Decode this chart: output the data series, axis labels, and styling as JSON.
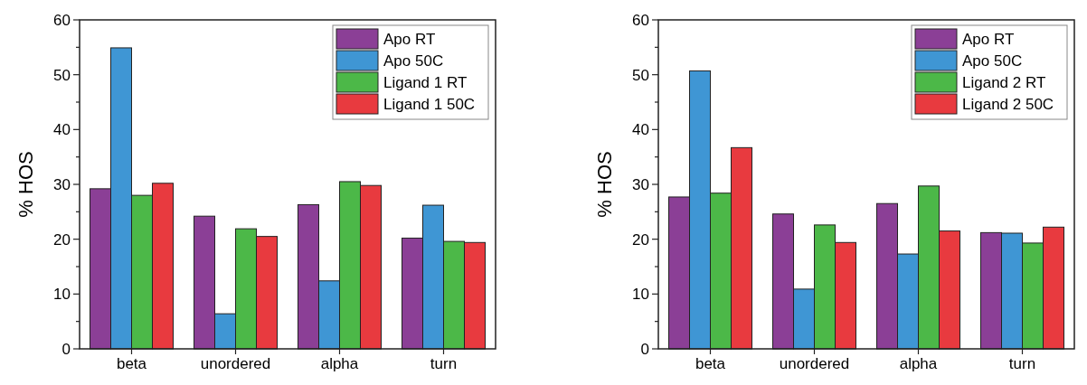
{
  "chart_data": [
    {
      "type": "bar",
      "ylabel": "% HOS",
      "categories": [
        "beta",
        "unordered",
        "alpha",
        "turn"
      ],
      "ylim": [
        0,
        60
      ],
      "yticks": [
        0,
        {
          "value": 5,
          "label": null
        },
        10,
        {
          "value": 15,
          "label": null
        },
        20,
        {
          "value": 25,
          "label": null
        },
        30,
        {
          "value": 35,
          "label": null
        },
        40,
        {
          "value": 45,
          "label": null
        },
        50,
        {
          "value": 55,
          "label": null
        },
        60
      ],
      "legend": "top right",
      "grid": false,
      "series": [
        {
          "name": "Apo RT",
          "color": "#8b3f96",
          "values": [
            29.2,
            24.2,
            26.3,
            20.2
          ]
        },
        {
          "name": "Apo 50C",
          "color": "#3f96d4",
          "values": [
            54.9,
            6.4,
            12.4,
            26.2
          ]
        },
        {
          "name": "Ligand 1 RT",
          "color": "#4cb848",
          "values": [
            28.0,
            21.9,
            30.5,
            19.6
          ]
        },
        {
          "name": "Ligand 1 50C",
          "color": "#e83a3f",
          "values": [
            30.2,
            20.5,
            29.8,
            19.4
          ]
        }
      ]
    },
    {
      "type": "bar",
      "ylabel": "% HOS",
      "categories": [
        "beta",
        "unordered",
        "alpha",
        "turn"
      ],
      "ylim": [
        0,
        60
      ],
      "yticks": [
        0,
        {
          "value": 5,
          "label": null
        },
        10,
        {
          "value": 15,
          "label": null
        },
        20,
        {
          "value": 25,
          "label": null
        },
        30,
        {
          "value": 35,
          "label": null
        },
        40,
        {
          "value": 45,
          "label": null
        },
        50,
        {
          "value": 55,
          "label": null
        },
        60
      ],
      "legend": "top right",
      "grid": false,
      "series": [
        {
          "name": "Apo RT",
          "color": "#8b3f96",
          "values": [
            27.7,
            24.6,
            26.5,
            21.2
          ]
        },
        {
          "name": "Apo 50C",
          "color": "#3f96d4",
          "values": [
            50.7,
            10.9,
            17.3,
            21.1
          ]
        },
        {
          "name": "Ligand 2 RT",
          "color": "#4cb848",
          "values": [
            28.4,
            22.6,
            29.7,
            19.3
          ]
        },
        {
          "name": "Ligand 2 50C",
          "color": "#e83a3f",
          "values": [
            36.7,
            19.4,
            21.5,
            22.2
          ]
        }
      ]
    }
  ]
}
